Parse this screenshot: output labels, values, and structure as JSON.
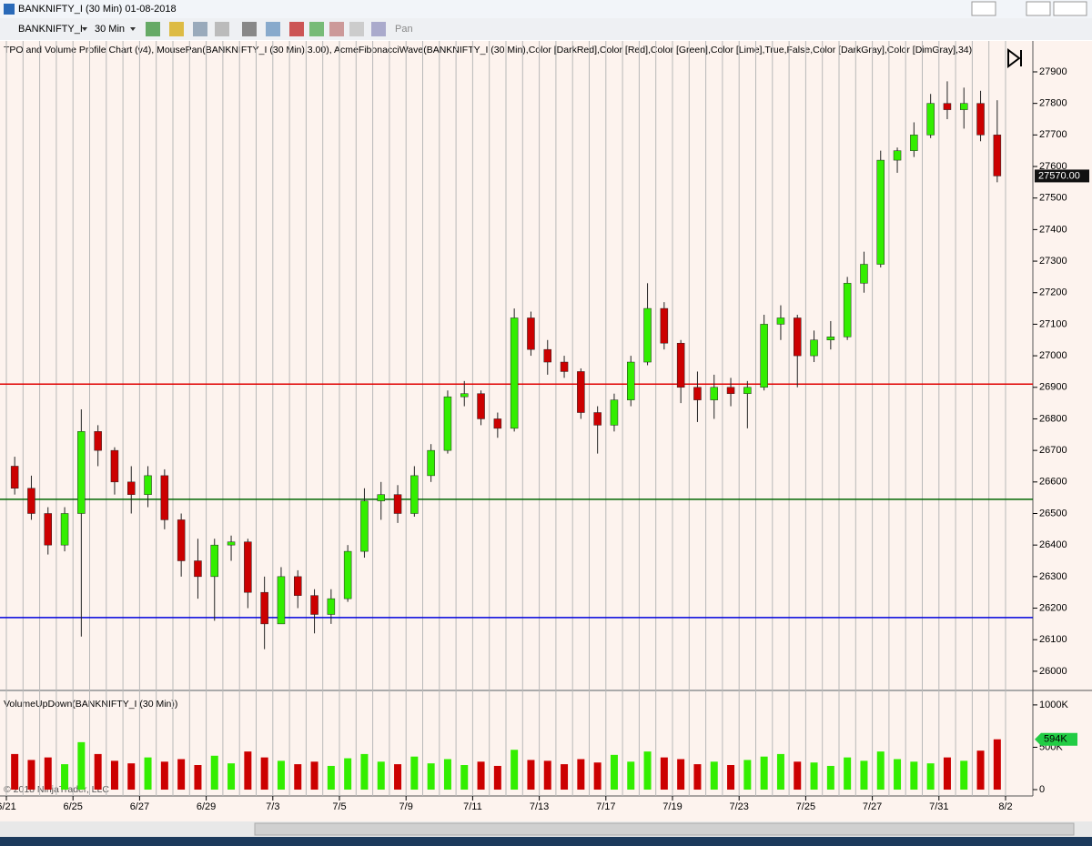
{
  "window": {
    "title": "BANKNIFTY_I (30 Min)  01-08-2018",
    "instrument": "BANKNIFTY_I",
    "interval": "30 Min",
    "pan": "Pan",
    "copyright": "© 2018 NinjaTrader, LLC"
  },
  "chart_data": [
    {
      "type": "candlestick",
      "title": "TPO and Volume Profile Chart (v4), MousePan(BANKNIFTY_I (30 Min),3.00), AcmeFibonacciWave(BANKNIFTY_I (30 Min),Color [DarkRed],Color [Red],Color [Green],Color [Lime],True,False,Color [DarkGray],Color [DimGray],34)",
      "categories": [
        "6/21",
        null,
        null,
        null,
        "6/25",
        null,
        null,
        null,
        "6/27",
        null,
        null,
        null,
        "6/29",
        null,
        null,
        null,
        "7/3",
        null,
        null,
        null,
        "7/5",
        null,
        null,
        null,
        "7/9",
        null,
        null,
        null,
        "7/11",
        null,
        null,
        null,
        "7/13",
        null,
        null,
        null,
        "7/17",
        null,
        null,
        null,
        "7/19",
        null,
        null,
        null,
        "7/23",
        null,
        null,
        null,
        "7/25",
        null,
        null,
        null,
        "7/27",
        null,
        null,
        null,
        "7/31",
        null,
        null,
        null,
        "8/2"
      ],
      "open": [
        26650,
        26580,
        26500,
        26400,
        26500,
        26760,
        26700,
        26600,
        26560,
        26620,
        26480,
        26350,
        26300,
        26400,
        26410,
        26250,
        26150,
        26300,
        26240,
        26180,
        26230,
        26380,
        26540,
        26560,
        26500,
        26620,
        26700,
        26870,
        26880,
        26800,
        26770,
        27120,
        27020,
        26980,
        26950,
        26820,
        26780,
        26860,
        26980,
        27150,
        27040,
        26900,
        26860,
        26900,
        26880,
        26900,
        27100,
        27120,
        27000,
        27050,
        27060,
        27230,
        27290,
        27620,
        27650,
        27700,
        27800,
        27780,
        27800,
        27700,
        null
      ],
      "high": [
        26680,
        26620,
        26520,
        26520,
        26830,
        26780,
        26710,
        26650,
        26650,
        26640,
        26500,
        26420,
        26420,
        26430,
        26420,
        26300,
        26330,
        26320,
        26260,
        26260,
        26400,
        26580,
        26600,
        26590,
        26650,
        26720,
        26890,
        26920,
        26890,
        26820,
        27150,
        27140,
        27050,
        27000,
        26960,
        26840,
        26880,
        27000,
        27230,
        27170,
        27050,
        26950,
        26940,
        26930,
        26920,
        27130,
        27160,
        27130,
        27080,
        27110,
        27250,
        27330,
        27650,
        27660,
        27740,
        27830,
        27870,
        27850,
        27840,
        27810,
        null
      ],
      "low": [
        26560,
        26480,
        26370,
        26380,
        26110,
        26650,
        26560,
        26500,
        26520,
        26450,
        26300,
        26230,
        26160,
        26350,
        26200,
        26070,
        26150,
        26200,
        26120,
        26150,
        26220,
        26360,
        26480,
        26470,
        26490,
        26600,
        26690,
        26840,
        26780,
        26740,
        26760,
        27000,
        26940,
        26930,
        26800,
        26690,
        26760,
        26840,
        26970,
        27020,
        26850,
        26790,
        26800,
        26840,
        26770,
        26890,
        27050,
        26900,
        26980,
        27020,
        27050,
        27200,
        27280,
        27580,
        27630,
        27690,
        27750,
        27720,
        27680,
        27550,
        null
      ],
      "close": [
        26580,
        26500,
        26400,
        26500,
        26760,
        26700,
        26600,
        26560,
        26620,
        26480,
        26350,
        26300,
        26400,
        26410,
        26250,
        26150,
        26300,
        26240,
        26180,
        26230,
        26380,
        26540,
        26560,
        26500,
        26620,
        26700,
        26870,
        26880,
        26800,
        26770,
        27120,
        27020,
        26980,
        26950,
        26820,
        26780,
        26860,
        26980,
        27150,
        27040,
        26900,
        26860,
        26900,
        26880,
        26900,
        27100,
        27120,
        27000,
        27050,
        27060,
        27230,
        27290,
        27620,
        27650,
        27700,
        27800,
        27780,
        27800,
        27700,
        27570,
        null
      ],
      "up_color": "#33ee00",
      "down_color": "#cc0000",
      "ylim": [
        25942,
        27998
      ],
      "yticks": [
        26000,
        26100,
        26200,
        26300,
        26400,
        26500,
        26600,
        26700,
        26800,
        26900,
        27000,
        27100,
        27200,
        27300,
        27400,
        27500,
        27600,
        27700,
        27800,
        27900
      ],
      "hlines": [
        {
          "value": 26910,
          "color": "#e00000"
        },
        {
          "value": 26545,
          "color": "#006600"
        },
        {
          "value": 26170,
          "color": "#0000dd"
        }
      ],
      "last_price": {
        "value": 27570,
        "label": "27570.00"
      }
    },
    {
      "type": "bar",
      "title": "VolumeUpDown(BANKNIFTY_I (30 Min))",
      "values": [
        420000,
        350000,
        380000,
        300000,
        560000,
        420000,
        340000,
        310000,
        380000,
        330000,
        360000,
        290000,
        400000,
        310000,
        450000,
        380000,
        340000,
        300000,
        330000,
        280000,
        370000,
        420000,
        330000,
        300000,
        390000,
        310000,
        360000,
        290000,
        330000,
        280000,
        470000,
        350000,
        340000,
        300000,
        360000,
        320000,
        410000,
        330000,
        450000,
        380000,
        360000,
        300000,
        330000,
        290000,
        350000,
        390000,
        420000,
        330000,
        320000,
        280000,
        380000,
        340000,
        450000,
        360000,
        330000,
        310000,
        380000,
        340000,
        460000,
        594000,
        null
      ],
      "ylim": [
        -75000,
        1160000
      ],
      "yticks": [
        0,
        {
          "value": 500000,
          "label": "500K"
        },
        {
          "value": 1000000,
          "label": "1000K"
        }
      ],
      "last_value": {
        "value": 594000,
        "label": "594K"
      }
    }
  ]
}
